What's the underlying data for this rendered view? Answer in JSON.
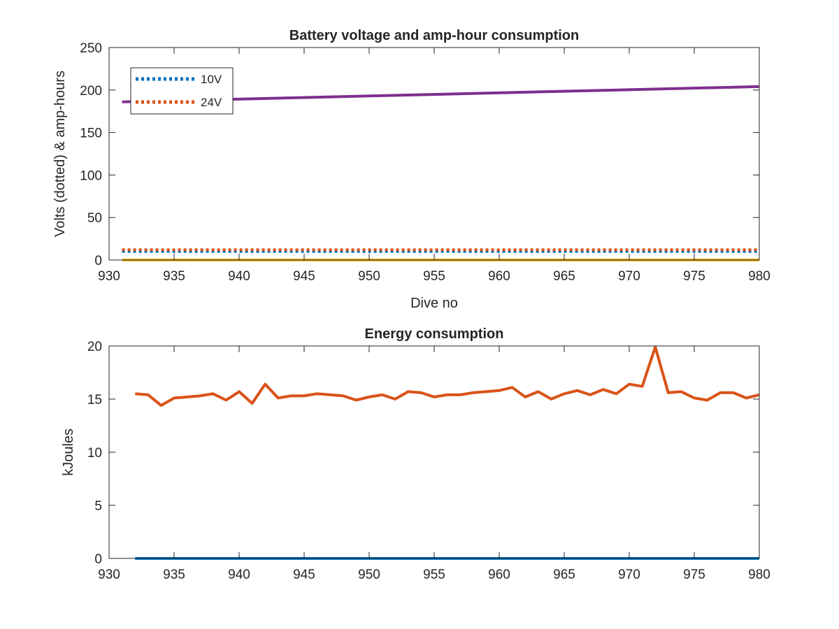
{
  "chart_data": [
    {
      "type": "line",
      "title": "Battery voltage and amp-hour consumption",
      "xlabel": "Dive no",
      "ylabel": "Volts (dotted) & amp-hours",
      "xlim": [
        930,
        980
      ],
      "ylim": [
        0,
        250
      ],
      "xticks": [
        "930",
        "935",
        "940",
        "945",
        "950",
        "955",
        "960",
        "965",
        "970",
        "975",
        "980"
      ],
      "yticks": [
        "0",
        "50",
        "100",
        "150",
        "200",
        "250"
      ],
      "grid": false,
      "legend_position": "top-left",
      "series": [
        {
          "name": "10V",
          "style": "dotted",
          "color": "#0072BD",
          "x": [
            931,
            980
          ],
          "y": [
            10,
            10
          ]
        },
        {
          "name": "24V",
          "style": "dotted",
          "color": "#D95319",
          "x": [
            931,
            980
          ],
          "y": [
            12,
            12
          ]
        },
        {
          "style": "solid",
          "color": "#7E2F8E",
          "x": [
            931,
            980
          ],
          "y": [
            186,
            204
          ]
        },
        {
          "style": "solid",
          "color": "#EDB120",
          "x": [
            931,
            980
          ],
          "y": [
            0,
            0
          ]
        }
      ]
    },
    {
      "type": "line",
      "title": "Energy consumption",
      "xlabel": "",
      "ylabel": "kJoules",
      "xlim": [
        930,
        980
      ],
      "ylim": [
        0,
        20
      ],
      "xticks": [
        "930",
        "935",
        "940",
        "945",
        "950",
        "955",
        "960",
        "965",
        "970",
        "975",
        "980"
      ],
      "yticks": [
        "0",
        "5",
        "10",
        "15",
        "20"
      ],
      "grid": false,
      "series": [
        {
          "style": "solid",
          "color": "#D95319",
          "x": [
            932,
            933,
            934,
            935,
            936,
            937,
            938,
            939,
            940,
            941,
            942,
            943,
            944,
            945,
            946,
            947,
            948,
            949,
            950,
            951,
            952,
            953,
            954,
            955,
            956,
            957,
            958,
            959,
            960,
            961,
            962,
            963,
            964,
            965,
            966,
            967,
            968,
            969,
            970,
            971,
            972,
            973,
            974,
            975,
            976,
            977,
            978,
            979,
            980
          ],
          "y": [
            15.5,
            15.4,
            14.4,
            15.1,
            15.2,
            15.3,
            15.5,
            14.9,
            15.7,
            14.6,
            16.4,
            15.1,
            15.3,
            15.3,
            15.5,
            15.4,
            15.3,
            14.9,
            15.2,
            15.4,
            15.0,
            15.7,
            15.6,
            15.2,
            15.4,
            15.4,
            15.6,
            15.7,
            15.8,
            16.1,
            15.2,
            15.7,
            15.0,
            15.5,
            15.8,
            15.4,
            15.9,
            15.5,
            16.4,
            16.2,
            19.9,
            15.6,
            15.7,
            15.1,
            14.9,
            15.6,
            15.6,
            15.1,
            15.4
          ]
        },
        {
          "style": "solid",
          "color": "#0072BD",
          "x": [
            932,
            980
          ],
          "y": [
            0,
            0
          ]
        }
      ]
    }
  ]
}
